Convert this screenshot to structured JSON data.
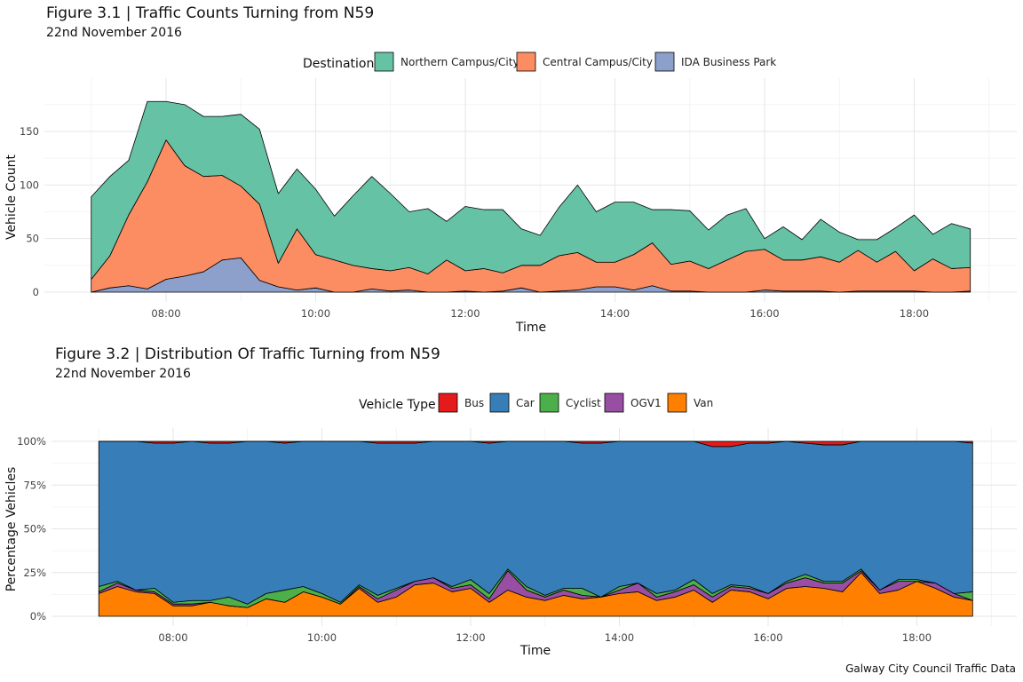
{
  "caption": "Galway City Council Traffic Data",
  "chart_data": [
    {
      "type": "area",
      "stacked": true,
      "title": "Figure 3.1 | Traffic Counts Turning from N59",
      "subtitle": "22nd November 2016",
      "xlabel": "Time",
      "ylabel": "Vehicle Count",
      "xlim": [
        "06:45",
        "19:00"
      ],
      "ylim": [
        0,
        180
      ],
      "x_ticks": [
        "08:00",
        "10:00",
        "12:00",
        "14:00",
        "16:00",
        "18:00"
      ],
      "y_ticks": [
        0,
        50,
        100,
        150
      ],
      "grid": true,
      "legend": {
        "title": "Destination",
        "position": "top"
      },
      "x": [
        "07:00",
        "07:15",
        "07:30",
        "07:45",
        "08:00",
        "08:15",
        "08:30",
        "08:45",
        "09:00",
        "09:15",
        "09:30",
        "09:45",
        "10:00",
        "10:15",
        "10:30",
        "10:45",
        "11:00",
        "11:15",
        "11:30",
        "11:45",
        "12:00",
        "12:15",
        "12:30",
        "12:45",
        "13:00",
        "13:15",
        "13:30",
        "13:45",
        "14:00",
        "14:15",
        "14:30",
        "14:45",
        "15:00",
        "15:15",
        "15:30",
        "15:45",
        "16:00",
        "16:15",
        "16:30",
        "16:45",
        "17:00",
        "17:15",
        "17:30",
        "17:45",
        "18:00",
        "18:15",
        "18:30",
        "18:45"
      ],
      "series": [
        {
          "name": "IDA Business Park",
          "color": "#8DA0CB",
          "values": [
            0,
            4,
            6,
            3,
            12,
            15,
            19,
            30,
            32,
            11,
            5,
            2,
            4,
            0,
            0,
            3,
            1,
            2,
            0,
            0,
            1,
            0,
            1,
            4,
            0,
            1,
            2,
            5,
            5,
            2,
            6,
            1,
            1,
            0,
            0,
            0,
            2,
            1,
            1,
            1,
            0,
            1,
            1,
            1,
            1,
            0,
            0,
            1
          ]
        },
        {
          "name": "Central Campus/City",
          "color": "#FC8D62",
          "values": [
            12,
            30,
            66,
            100,
            130,
            103,
            89,
            79,
            67,
            71,
            22,
            57,
            31,
            30,
            25,
            19,
            19,
            21,
            17,
            30,
            19,
            22,
            17,
            21,
            25,
            33,
            35,
            23,
            23,
            33,
            40,
            25,
            28,
            22,
            30,
            38,
            38,
            29,
            29,
            32,
            28,
            38,
            27,
            37,
            19,
            31,
            22,
            22
          ]
        },
        {
          "name": "Northern Campus/City",
          "color": "#66C2A5",
          "values": [
            77,
            74,
            51,
            75,
            36,
            57,
            56,
            55,
            67,
            70,
            65,
            56,
            61,
            41,
            65,
            86,
            72,
            52,
            61,
            36,
            60,
            55,
            59,
            34,
            28,
            45,
            63,
            47,
            56,
            49,
            31,
            51,
            47,
            36,
            42,
            40,
            10,
            31,
            19,
            35,
            28,
            10,
            21,
            22,
            52,
            23,
            42,
            36
          ]
        }
      ]
    },
    {
      "type": "area",
      "stacked": true,
      "percent": true,
      "title": "Figure 3.2 | Distribution Of Traffic Turning from N59",
      "subtitle": "22nd November 2016",
      "xlabel": "Time",
      "ylabel": "Percentage Vehicles",
      "xlim": [
        "06:45",
        "19:00"
      ],
      "ylim": [
        0,
        1
      ],
      "x_ticks": [
        "08:00",
        "10:00",
        "12:00",
        "14:00",
        "16:00",
        "18:00"
      ],
      "y_ticks": [
        "0%",
        "25%",
        "50%",
        "75%",
        "100%"
      ],
      "grid": true,
      "legend": {
        "title": "Vehicle Type",
        "position": "top"
      },
      "x": [
        "07:00",
        "07:15",
        "07:30",
        "07:45",
        "08:00",
        "08:15",
        "08:30",
        "08:45",
        "09:00",
        "09:15",
        "09:30",
        "09:45",
        "10:00",
        "10:15",
        "10:30",
        "10:45",
        "11:00",
        "11:15",
        "11:30",
        "11:45",
        "12:00",
        "12:15",
        "12:30",
        "12:45",
        "13:00",
        "13:15",
        "13:30",
        "13:45",
        "14:00",
        "14:15",
        "14:30",
        "14:45",
        "15:00",
        "15:15",
        "15:30",
        "15:45",
        "16:00",
        "16:15",
        "16:30",
        "16:45",
        "17:00",
        "17:15",
        "17:30",
        "17:45",
        "18:00",
        "18:15",
        "18:30",
        "18:45"
      ],
      "series": [
        {
          "name": "Van",
          "color": "#FF7F00",
          "values": [
            0.13,
            0.17,
            0.14,
            0.13,
            0.06,
            0.06,
            0.08,
            0.06,
            0.05,
            0.1,
            0.08,
            0.14,
            0.11,
            0.07,
            0.16,
            0.08,
            0.11,
            0.18,
            0.19,
            0.14,
            0.16,
            0.08,
            0.15,
            0.11,
            0.09,
            0.12,
            0.1,
            0.11,
            0.13,
            0.14,
            0.09,
            0.11,
            0.15,
            0.08,
            0.15,
            0.14,
            0.1,
            0.16,
            0.17,
            0.16,
            0.14,
            0.25,
            0.13,
            0.15,
            0.2,
            0.16,
            0.11,
            0.09
          ]
        },
        {
          "name": "OGV1",
          "color": "#984EA3",
          "values": [
            0.01,
            0.02,
            0.01,
            0.01,
            0.01,
            0.01,
            0.0,
            0.0,
            0.0,
            0.0,
            0.0,
            0.0,
            0.0,
            0.0,
            0.01,
            0.02,
            0.04,
            0.02,
            0.03,
            0.02,
            0.02,
            0.02,
            0.11,
            0.04,
            0.02,
            0.03,
            0.02,
            0.0,
            0.02,
            0.05,
            0.02,
            0.03,
            0.03,
            0.03,
            0.02,
            0.02,
            0.03,
            0.03,
            0.05,
            0.03,
            0.05,
            0.01,
            0.02,
            0.05,
            0.0,
            0.03,
            0.02,
            0.0
          ]
        },
        {
          "name": "Cyclist",
          "color": "#4DAF4A",
          "values": [
            0.03,
            0.01,
            0.0,
            0.02,
            0.01,
            0.02,
            0.01,
            0.05,
            0.02,
            0.03,
            0.07,
            0.03,
            0.02,
            0.01,
            0.01,
            0.02,
            0.01,
            0.0,
            0.0,
            0.01,
            0.03,
            0.03,
            0.01,
            0.02,
            0.01,
            0.01,
            0.04,
            0.0,
            0.02,
            0.0,
            0.02,
            0.01,
            0.03,
            0.02,
            0.01,
            0.01,
            0.0,
            0.01,
            0.02,
            0.01,
            0.01,
            0.01,
            0.0,
            0.01,
            0.01,
            0.0,
            0.0,
            0.05
          ]
        },
        {
          "name": "Car",
          "color": "#377EB8",
          "values": [
            0.83,
            0.8,
            0.85,
            0.83,
            0.91,
            0.91,
            0.9,
            0.88,
            0.93,
            0.87,
            0.84,
            0.83,
            0.87,
            0.92,
            0.82,
            0.87,
            0.83,
            0.79,
            0.78,
            0.83,
            0.79,
            0.86,
            0.73,
            0.83,
            0.88,
            0.84,
            0.83,
            0.88,
            0.83,
            0.81,
            0.87,
            0.85,
            0.79,
            0.84,
            0.79,
            0.82,
            0.86,
            0.8,
            0.75,
            0.78,
            0.78,
            0.73,
            0.85,
            0.79,
            0.79,
            0.81,
            0.87,
            0.85
          ]
        },
        {
          "name": "Bus",
          "color": "#E41A1C",
          "values": [
            0.0,
            0.0,
            0.0,
            0.01,
            0.01,
            0.0,
            0.01,
            0.01,
            0.0,
            0.0,
            0.01,
            0.0,
            0.0,
            0.0,
            0.0,
            0.01,
            0.01,
            0.01,
            0.0,
            0.0,
            0.0,
            0.01,
            0.0,
            0.0,
            0.0,
            0.0,
            0.01,
            0.01,
            0.0,
            0.0,
            0.0,
            0.0,
            0.0,
            0.03,
            0.03,
            0.01,
            0.01,
            0.0,
            0.01,
            0.02,
            0.02,
            0.0,
            0.0,
            0.0,
            0.0,
            0.0,
            0.0,
            0.01
          ]
        }
      ],
      "legend_order": [
        "Bus",
        "Car",
        "Cyclist",
        "OGV1",
        "Van"
      ]
    }
  ]
}
